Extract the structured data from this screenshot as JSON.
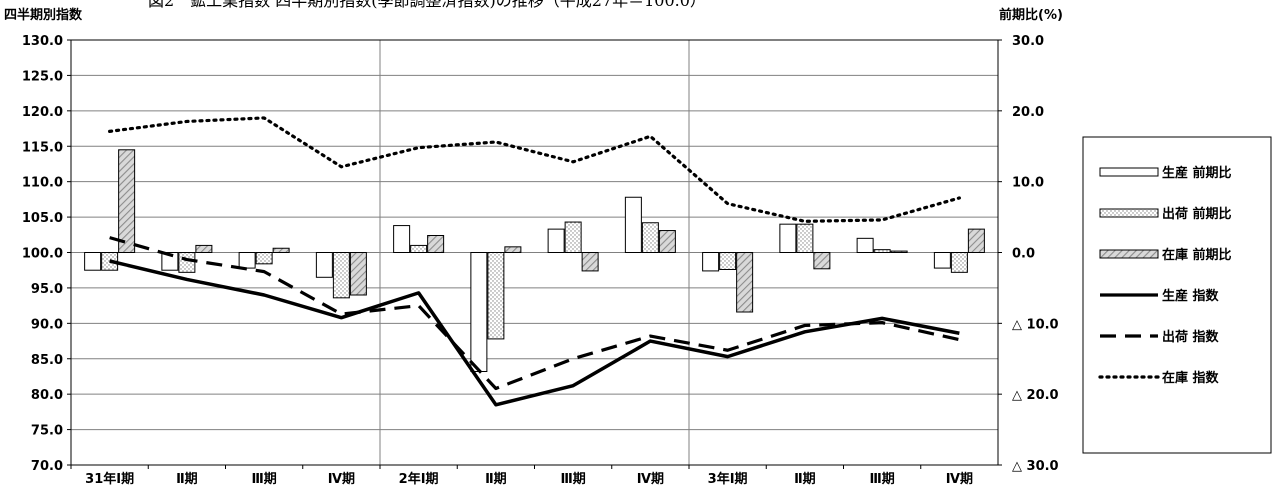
{
  "title": "図2　鉱工業指数 四半期別指数(季節調整済指数)の推移（平成27年＝100.0）",
  "chart_data": {
    "type": "bar",
    "title": "図2　鉱工業指数 四半期別指数(季節調整済指数)の推移（平成27年＝100.0）",
    "ylabel": "四半期別指数",
    "y2label": "前期比(%)",
    "ylim": [
      70,
      130
    ],
    "y2lim": [
      -30,
      30
    ],
    "grid": true,
    "legend_position": "right",
    "x": [
      "31年Ⅰ期",
      "Ⅱ期",
      "Ⅲ期",
      "Ⅳ期",
      "2年Ⅰ期",
      "Ⅱ期",
      "Ⅲ期",
      "Ⅳ期",
      "3年Ⅰ期",
      "Ⅱ期",
      "Ⅲ期",
      "Ⅳ期"
    ],
    "yticks": [
      "130.0",
      "125.0",
      "120.0",
      "115.0",
      "110.0",
      "105.0",
      "100.0",
      "95.0",
      "90.0",
      "85.0",
      "80.0",
      "75.0",
      "70.0"
    ],
    "y2ticks": [
      "30.0",
      "20.0",
      "10.0",
      "0.0",
      "△ 10.0",
      "△ 20.0",
      "△ 30.0"
    ],
    "bar_series": [
      {
        "name": "生産 前期比",
        "axis": "right",
        "values": [
          -2.5,
          -2.5,
          -2.2,
          -3.5,
          3.8,
          -16.8,
          3.3,
          7.8,
          -2.6,
          4.0,
          2.0,
          -2.2
        ]
      },
      {
        "name": "出荷 前期比",
        "axis": "right",
        "values": [
          -2.5,
          -2.8,
          -1.6,
          -6.4,
          1.0,
          -12.2,
          4.3,
          4.2,
          -2.4,
          4.0,
          0.4,
          -2.8
        ]
      },
      {
        "name": "在庫 前期比",
        "axis": "right",
        "values": [
          14.5,
          1.0,
          0.6,
          -6.0,
          2.4,
          0.8,
          -2.6,
          3.1,
          -8.4,
          -2.3,
          0.2,
          3.3
        ]
      }
    ],
    "line_series": [
      {
        "name": "生産 指数",
        "axis": "left",
        "style": "solid",
        "values": [
          98.8,
          96.2,
          94.0,
          90.8,
          94.3,
          78.5,
          81.2,
          87.5,
          85.3,
          88.8,
          90.7,
          88.6
        ]
      },
      {
        "name": "出荷 指数",
        "axis": "left",
        "style": "dashed",
        "values": [
          102.1,
          99.0,
          97.3,
          91.3,
          92.5,
          80.8,
          85.0,
          88.2,
          86.2,
          89.7,
          90.1,
          87.7
        ]
      },
      {
        "name": "在庫 指数",
        "axis": "left",
        "style": "dotted",
        "values": [
          117.1,
          118.5,
          119.0,
          112.1,
          114.8,
          115.6,
          112.8,
          116.4,
          106.9,
          104.4,
          104.6,
          107.7
        ]
      }
    ],
    "colors": {
      "axis": "#000000",
      "grid": "#808080",
      "bar_fill": "#ffffff",
      "bar_dots": "#7f7f7f",
      "bar_hatch": "#a6a6a6",
      "line": "#000000"
    }
  }
}
